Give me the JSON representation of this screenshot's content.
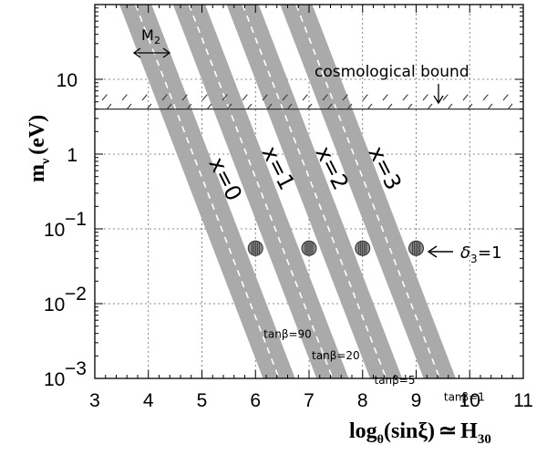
{
  "chart_data": {
    "type": "line",
    "xlabel": "log_θ(sinξ) ≃ H_30",
    "ylabel": "m_ν (eV)",
    "xlim": [
      3,
      11
    ],
    "ylim_log10": [
      -3,
      2
    ],
    "log_y": true,
    "grid": true,
    "x_ticks": [
      "3",
      "4",
      "5",
      "6",
      "7",
      "8",
      "9",
      "10",
      "11"
    ],
    "y_ticks": [
      {
        "value": 10,
        "base": "10",
        "exp": ""
      },
      {
        "value": 1,
        "base": "1",
        "exp": ""
      },
      {
        "value": 0.1,
        "base": "10",
        "exp": "−1"
      },
      {
        "value": 0.01,
        "base": "10",
        "exp": "−2"
      },
      {
        "value": 0.001,
        "base": "10",
        "exp": "−3"
      }
    ],
    "band_halfwidth_log": 0.3,
    "series": [
      {
        "name": "x=0",
        "x": [
          3.76,
          6.44
        ],
        "y": [
          100,
          0.001
        ],
        "point": {
          "x": 6.0,
          "y": 0.055
        },
        "tanb": "tanβ=90",
        "tanb_pos": [
          6.6,
          0.0035
        ]
      },
      {
        "name": "x=1",
        "x": [
          4.76,
          7.44
        ],
        "y": [
          100,
          0.001
        ],
        "point": {
          "x": 7.0,
          "y": 0.055
        },
        "tanb": "tanβ=20",
        "tanb_pos": [
          7.5,
          0.0018
        ]
      },
      {
        "name": "x=2",
        "x": [
          5.76,
          8.44
        ],
        "y": [
          100,
          0.001
        ],
        "point": {
          "x": 8.0,
          "y": 0.055
        },
        "tanb": "tanβ=5",
        "tanb_pos": [
          8.6,
          0.00085
        ]
      },
      {
        "name": "x=3",
        "x": [
          6.76,
          9.44
        ],
        "y": [
          100,
          0.001
        ],
        "point": {
          "x": 9.0,
          "y": 0.055
        },
        "tanb": "tanβ=1",
        "tanb_pos": [
          9.9,
          0.0005
        ]
      }
    ],
    "bound": {
      "label": "cosmological bound",
      "value": 4.0
    },
    "annotations": {
      "M2": "M",
      "M2_sub": "2",
      "delta": "δ",
      "delta_sub": "3",
      "delta_eq": "=1"
    }
  }
}
